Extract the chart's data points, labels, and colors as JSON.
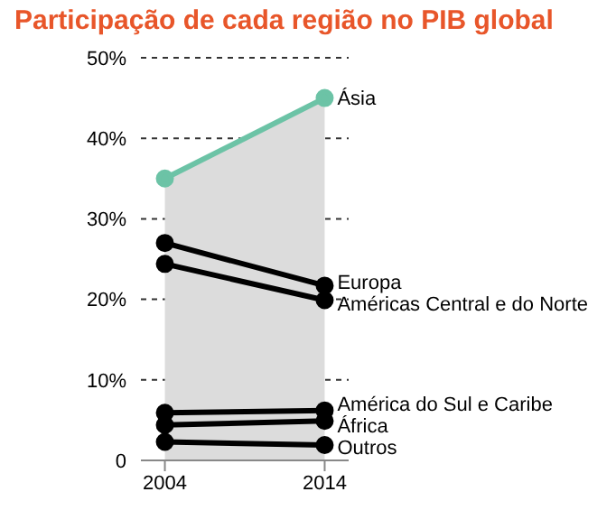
{
  "chart_data": {
    "type": "line",
    "title": "Participação de cada região no PIB global",
    "categories": [
      "2004",
      "2014"
    ],
    "series": [
      {
        "name": "Ásia",
        "type": "area",
        "color": "#6cc3a6",
        "values": [
          35,
          45
        ]
      },
      {
        "name": "Europa",
        "color": "#000000",
        "values": [
          27,
          21.7
        ]
      },
      {
        "name": "Américas Central e do Norte",
        "color": "#000000",
        "values": [
          24.4,
          19.9
        ]
      },
      {
        "name": "América do Sul e Caribe",
        "color": "#000000",
        "values": [
          5.9,
          6.2
        ]
      },
      {
        "name": "África",
        "color": "#000000",
        "values": [
          4.4,
          4.9
        ]
      },
      {
        "name": "Outros",
        "color": "#000000",
        "values": [
          2.3,
          1.9
        ]
      }
    ],
    "ylim": [
      0,
      50
    ],
    "yticks": [
      {
        "value": 0,
        "label": "0"
      },
      {
        "value": 10,
        "label": "10%"
      },
      {
        "value": 20,
        "label": "20%"
      },
      {
        "value": 30,
        "label": "30%"
      },
      {
        "value": 40,
        "label": "40%"
      },
      {
        "value": 50,
        "label": "50%"
      }
    ],
    "grid": "y",
    "marker": "circle",
    "line_style": "solid"
  }
}
